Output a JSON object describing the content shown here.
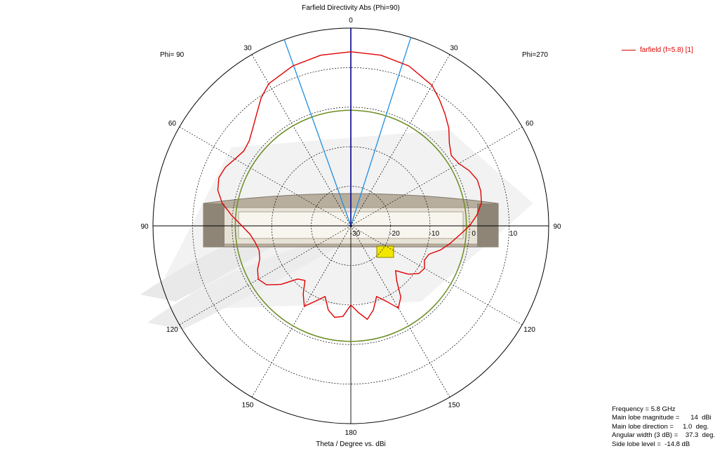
{
  "chart_data": {
    "type": "polar",
    "title": "Farfield Directivity Abs (Phi=90)",
    "xlabel": "Theta / Degree vs. dBi",
    "left_label": "Phi= 90",
    "right_label": "Phi=270",
    "radial_range": [
      -30,
      20
    ],
    "radial_ticks": [
      "-30",
      "-20",
      "-10",
      "0",
      "10"
    ],
    "angle_ticks": [
      "0",
      "30",
      "60",
      "90",
      "120",
      "150",
      "180",
      "150",
      "120",
      "90",
      "60",
      "30"
    ],
    "series": [
      {
        "name": "farfield (f=5.8) [1]",
        "color": "#e00000",
        "theta": [
          0,
          10,
          20,
          30,
          35,
          40,
          45,
          50,
          55,
          60,
          65,
          70,
          75,
          80,
          85,
          90,
          95,
          100,
          105,
          110,
          115,
          120,
          125,
          130,
          135,
          140,
          145,
          150,
          155,
          160,
          165,
          170,
          175,
          180,
          185,
          190,
          195,
          200,
          205,
          210,
          215,
          220,
          225,
          230,
          235,
          240,
          245,
          250,
          255,
          260,
          265,
          270,
          275,
          280,
          285,
          290,
          295,
          300,
          305,
          310,
          315,
          320,
          325,
          330,
          340,
          350,
          360
        ],
        "values": [
          14,
          13.8,
          13,
          11.5,
          9.5,
          7,
          5,
          3.5,
          3,
          3.8,
          5,
          5.5,
          4.8,
          3,
          0.2,
          -2.5,
          -4.5,
          -5.5,
          -6,
          -5.5,
          -4,
          -3,
          -4,
          -7,
          -11,
          -12,
          -9,
          -6.5,
          -9,
          -11,
          -8,
          -6.5,
          -7,
          -10,
          -8,
          -6,
          -8,
          -11,
          -9,
          -6,
          -8,
          -12,
          -14,
          -11,
          -9,
          -8.5,
          -9.5,
          -9,
          -6.5,
          -4.5,
          -2.5,
          0,
          2,
          3.5,
          4,
          4,
          3,
          1.5,
          1,
          2.5,
          5,
          7,
          9,
          11,
          13,
          13.8,
          14
        ]
      }
    ],
    "main_lobe_direction_deg": 1.0,
    "beamwidth_deg": 37.3,
    "reference_circle_dBi": -0.8
  },
  "legend": {
    "label": "farfield (f=5.8) [1]"
  },
  "info": {
    "frequency": "Frequency = 5.8 GHz",
    "magnitude": "Main lobe magnitude =      14  dBi",
    "direction": "Main lobe direction =     1.0  deg.",
    "width": "Angular width (3 dB) =    37.3  deg.",
    "sidelobe": "Side lobe level =  -14.8 dB"
  },
  "colors": {
    "pattern": "#e00000",
    "beam_edges": "#1e8fe0",
    "main_direction": "#00008b",
    "reference_circle": "#6b8e23",
    "grid": "#000000"
  }
}
